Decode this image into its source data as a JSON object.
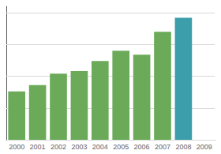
{
  "chart_data": {
    "type": "bar",
    "categories": [
      "2000",
      "2001",
      "2002",
      "2003",
      "2004",
      "2005",
      "2006",
      "2007",
      "2008",
      "2009"
    ],
    "values": [
      38,
      43,
      52,
      54,
      62,
      70,
      67,
      85,
      96,
      0
    ],
    "colors": [
      "#6aaa58",
      "#6aaa58",
      "#6aaa58",
      "#6aaa58",
      "#6aaa58",
      "#6aaa58",
      "#6aaa58",
      "#6aaa58",
      "#3c9eaa",
      "#ffffff"
    ],
    "ylim": [
      0,
      105
    ],
    "yticks": [
      0,
      25,
      50,
      75,
      100
    ],
    "grid": true,
    "tick_labels": "x"
  }
}
